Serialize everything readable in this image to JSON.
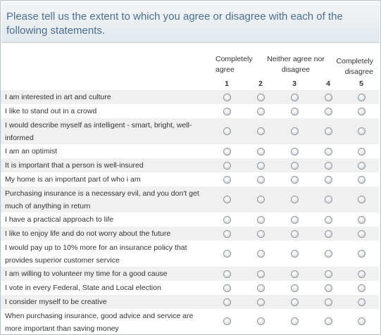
{
  "question": "Please tell us the extent to which you agree or disagree with each of the following statements.",
  "scale": {
    "left_label": "Completely agree",
    "middle_label": "Neither agree nor disagree",
    "right_label": "Completely disagree",
    "columns": [
      "1",
      "2",
      "3",
      "4",
      "5"
    ]
  },
  "statements": [
    "I am interested in art and culture",
    "I like to stand out in a crowd",
    "I would describe myself as intelligent - smart, bright, well-informed",
    "I am an optimist",
    "It is important that a person is well-insured",
    "My home is an important part of who i am",
    "Purchasing insurance is a necessary evil, and you don't get much of anything in return",
    "I have a practical approach to life",
    "I like to enjoy life and do not worry about the future",
    "I would pay up to 10% more for an insurance policy that provides superior customer service",
    "I am willing to volunteer my time for a good cause",
    "I vote in every Federal, State and Local election",
    "I consider myself to be creative",
    "When purchasing insurance, good advice and service are more important than saving money"
  ],
  "colors": {
    "question_text": "#4d6e8e",
    "row_alt": "#f0f0f0"
  }
}
